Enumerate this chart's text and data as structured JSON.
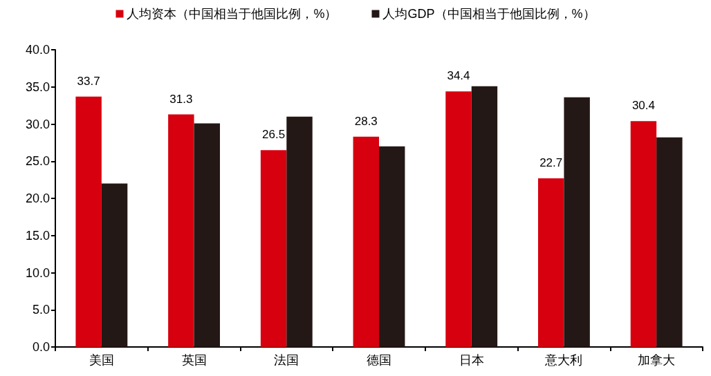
{
  "chart_data": {
    "type": "bar",
    "categories": [
      "美国",
      "英国",
      "法国",
      "德国",
      "日本",
      "意大利",
      "加拿大"
    ],
    "series": [
      {
        "name": "人均资本（中国相当于他国比例，%）",
        "color": "#d7000f",
        "values": [
          33.7,
          31.3,
          26.5,
          28.3,
          34.4,
          22.7,
          30.4
        ],
        "value_labels": [
          "33.7",
          "31.3",
          "26.5",
          "28.3",
          "34.4",
          "22.7",
          "30.4"
        ]
      },
      {
        "name": "人均GDP（中国相当于他国比例，%）",
        "color": "#231815",
        "values": [
          22.0,
          30.1,
          31.0,
          27.0,
          35.1,
          33.6,
          28.2
        ]
      }
    ],
    "ylim": [
      0,
      40
    ],
    "yticks": [
      {
        "value": 0,
        "label": "0.0"
      },
      {
        "value": 5,
        "label": "5.0"
      },
      {
        "value": 10,
        "label": "10.0"
      },
      {
        "value": 15,
        "label": "15.0"
      },
      {
        "value": 20,
        "label": "20.0"
      },
      {
        "value": 25,
        "label": "25.0"
      },
      {
        "value": 30,
        "label": "30.0"
      },
      {
        "value": 35,
        "label": "35.0"
      },
      {
        "value": 40,
        "label": "40.0"
      }
    ],
    "grid": false,
    "legend": "top"
  }
}
